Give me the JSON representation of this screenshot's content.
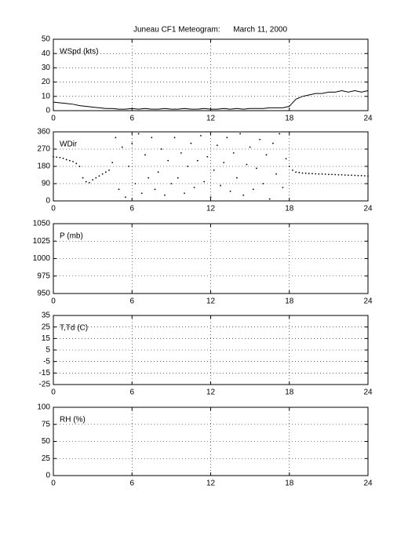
{
  "chart_data": [
    {
      "type": "line",
      "title": "Juneau CF1 Meteogram:      March 11, 2000",
      "ylabel": "WSpd (kts)",
      "color": "#000000",
      "grid": true,
      "xlim": [
        0,
        24
      ],
      "xticks": [
        0,
        6,
        12,
        18,
        24
      ],
      "ylim": [
        0,
        50
      ],
      "yticks": [
        0,
        10,
        20,
        30,
        40,
        50
      ],
      "x": [
        0,
        0.5,
        1,
        1.5,
        2,
        2.5,
        3,
        3.5,
        4,
        4.5,
        5,
        5.5,
        6,
        6.5,
        7,
        7.5,
        8,
        8.5,
        9,
        9.5,
        10,
        10.5,
        11,
        11.5,
        12,
        12.5,
        13,
        13.5,
        14,
        14.5,
        15,
        15.5,
        16,
        16.5,
        17,
        17.5,
        18,
        18.5,
        19,
        19.5,
        20,
        20.5,
        21,
        21.5,
        22,
        22.5,
        23,
        23.5,
        24
      ],
      "values": [
        6,
        5.5,
        5,
        4.5,
        3.5,
        3,
        2.5,
        2,
        1.5,
        1.5,
        1,
        1,
        1.5,
        1,
        1.5,
        1,
        1,
        1.5,
        1,
        1,
        1.5,
        1,
        1,
        1.5,
        1,
        1,
        1.5,
        1,
        1.5,
        1,
        1.5,
        1.5,
        1.5,
        2,
        2,
        2,
        3,
        8,
        10,
        11,
        12,
        12,
        13,
        13,
        14,
        13,
        14,
        13,
        14
      ]
    },
    {
      "type": "scatter",
      "ylabel": "WDir",
      "color": "#000000",
      "grid": true,
      "xlim": [
        0,
        24
      ],
      "xticks": [
        0,
        6,
        12,
        18,
        24
      ],
      "ylim": [
        0,
        360
      ],
      "yticks": [
        0,
        90,
        180,
        270,
        360
      ],
      "x": [
        0,
        0.25,
        0.5,
        0.75,
        1,
        1.25,
        1.5,
        1.75,
        2,
        2.25,
        2.5,
        2.75,
        3,
        3.25,
        3.5,
        3.75,
        4,
        4.25,
        4.5,
        4.75,
        5,
        5.25,
        5.5,
        5.75,
        6,
        6.25,
        6.5,
        6.75,
        7,
        7.25,
        7.5,
        7.75,
        8,
        8.25,
        8.5,
        8.75,
        9,
        9.25,
        9.5,
        9.75,
        10,
        10.25,
        10.5,
        10.75,
        11,
        11.25,
        11.5,
        11.75,
        12,
        12.25,
        12.5,
        12.75,
        13,
        13.25,
        13.5,
        13.75,
        14,
        14.25,
        14.5,
        14.75,
        15,
        15.25,
        15.5,
        15.75,
        16,
        16.25,
        16.5,
        16.75,
        17,
        17.25,
        17.5,
        17.75,
        18,
        18.25,
        18.5,
        18.75,
        19,
        19.25,
        19.5,
        19.75,
        20,
        20.25,
        20.5,
        20.75,
        21,
        21.25,
        21.5,
        21.75,
        22,
        22.25,
        22.5,
        22.75,
        23,
        23.25,
        23.5,
        23.75,
        24
      ],
      "values": [
        230,
        228,
        226,
        222,
        215,
        210,
        205,
        195,
        180,
        120,
        100,
        95,
        110,
        120,
        130,
        140,
        150,
        160,
        200,
        330,
        60,
        280,
        20,
        180,
        300,
        90,
        350,
        40,
        240,
        120,
        330,
        60,
        150,
        270,
        30,
        210,
        90,
        330,
        120,
        250,
        40,
        180,
        300,
        70,
        210,
        340,
        100,
        230,
        20,
        160,
        290,
        80,
        200,
        330,
        50,
        250,
        120,
        350,
        30,
        190,
        280,
        60,
        170,
        320,
        90,
        240,
        10,
        300,
        140,
        350,
        70,
        220,
        180,
        160,
        150,
        148,
        145,
        144,
        143,
        142,
        141,
        140,
        140,
        139,
        138,
        138,
        137,
        136,
        136,
        135,
        134,
        134,
        133,
        132,
        132,
        131,
        130
      ]
    },
    {
      "type": "line",
      "ylabel": "P (mb)",
      "grid": true,
      "xlim": [
        0,
        24
      ],
      "xticks": [
        0,
        6,
        12,
        18,
        24
      ],
      "ylim": [
        950,
        1050
      ],
      "yticks": [
        950,
        975,
        1000,
        1025,
        1050
      ]
    },
    {
      "type": "line",
      "ylabel": "T,Td (C)",
      "grid": true,
      "xlim": [
        0,
        24
      ],
      "xticks": [
        0,
        6,
        12,
        18,
        24
      ],
      "ylim": [
        -25,
        35
      ],
      "yticks": [
        -25,
        -15,
        -5,
        5,
        15,
        25,
        35
      ]
    },
    {
      "type": "line",
      "ylabel": "RH (%)",
      "grid": true,
      "xlim": [
        0,
        24
      ],
      "xticks": [
        0,
        6,
        12,
        18,
        24
      ],
      "ylim": [
        0,
        100
      ],
      "yticks": [
        0,
        25,
        50,
        75,
        100
      ]
    }
  ]
}
